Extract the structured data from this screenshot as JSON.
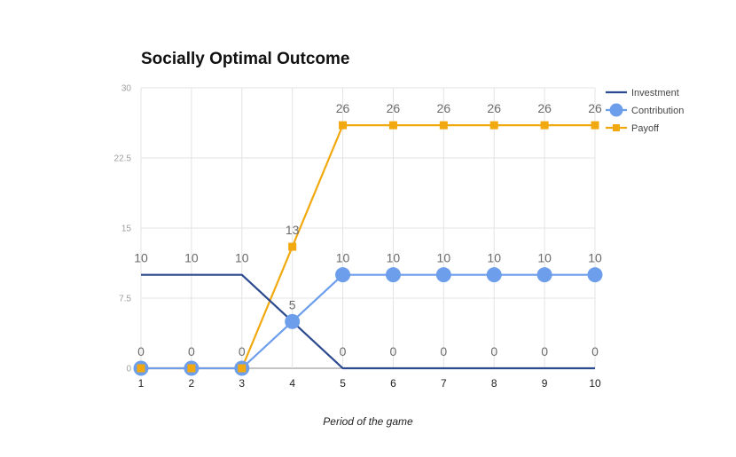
{
  "chart_data": {
    "type": "line",
    "title": "Socially Optimal Outcome",
    "xlabel": "Period of the game",
    "ylabel": "",
    "x": [
      1,
      2,
      3,
      4,
      5,
      6,
      7,
      8,
      9,
      10
    ],
    "yticks": [
      "0",
      "7.5",
      "15",
      "22.5",
      "30"
    ],
    "ylim": [
      0,
      30
    ],
    "grid": true,
    "legend": "top-right",
    "series": [
      {
        "name": "Investment",
        "color": "#2c4a8f",
        "marker": "none",
        "values": [
          10,
          10,
          10,
          5,
          0,
          0,
          0,
          0,
          0,
          0
        ]
      },
      {
        "name": "Contribution",
        "color": "#6d9eeb",
        "marker": "circle",
        "values": [
          0,
          0,
          0,
          5,
          10,
          10,
          10,
          10,
          10,
          10
        ]
      },
      {
        "name": "Payoff",
        "color": "#f1a90f",
        "marker": "square",
        "values": [
          0,
          0,
          0,
          13,
          26,
          26,
          26,
          26,
          26,
          26
        ]
      }
    ],
    "data_labels": [
      {
        "series": "Investment",
        "labels": [
          "10",
          "10",
          "10",
          "",
          "0",
          "0",
          "0",
          "0",
          "0",
          "0"
        ]
      },
      {
        "series": "Contribution",
        "labels": [
          "0",
          "0",
          "0",
          "5",
          "10",
          "10",
          "10",
          "10",
          "10",
          "10"
        ]
      },
      {
        "series": "Payoff",
        "labels": [
          "",
          "",
          "",
          "13",
          "26",
          "26",
          "26",
          "26",
          "26",
          "26"
        ]
      }
    ]
  }
}
